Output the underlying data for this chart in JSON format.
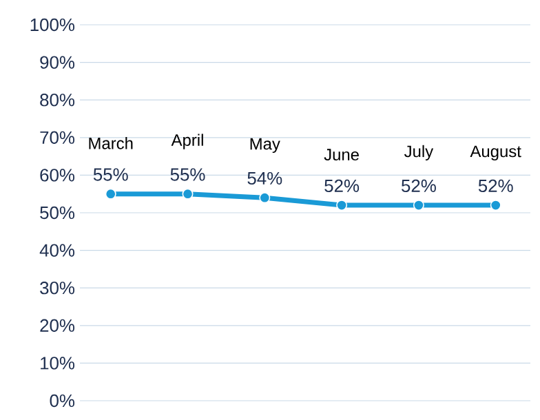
{
  "chart_data": {
    "type": "line",
    "categories": [
      "March",
      "April",
      "May",
      "June",
      "July",
      "August"
    ],
    "series": [
      {
        "color": "#1a9ad6",
        "values": [
          55,
          55,
          54,
          52,
          52,
          52
        ]
      }
    ],
    "ylim": [
      0,
      100
    ],
    "yticks": [
      {
        "value": 0,
        "label": "0%"
      },
      {
        "value": 10,
        "label": "10%"
      },
      {
        "value": 20,
        "label": "20%"
      },
      {
        "value": 30,
        "label": "30%"
      },
      {
        "value": 40,
        "label": "40%"
      },
      {
        "value": 50,
        "label": "50%"
      },
      {
        "value": 60,
        "label": "60%"
      },
      {
        "value": 70,
        "label": "70%"
      },
      {
        "value": 80,
        "label": "80%"
      },
      {
        "value": 90,
        "label": "90%"
      },
      {
        "value": 100,
        "label": "100%"
      }
    ],
    "value_labels": [
      "55%",
      "55%",
      "54%",
      "52%",
      "52%",
      "52%"
    ],
    "grid": "y",
    "marker": "circle",
    "line_style": "solid"
  }
}
